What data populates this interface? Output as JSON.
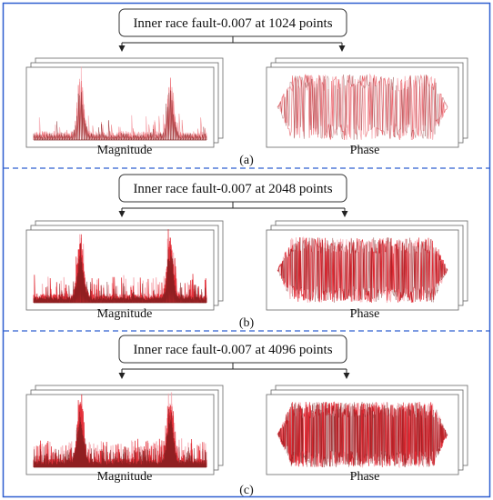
{
  "panels": [
    {
      "id": "a",
      "title": "Inner race fault-0.007 at 1024 points",
      "magnitude_label": "Magnitude",
      "phase_label": "Phase",
      "caption": "(a)",
      "density": "low"
    },
    {
      "id": "b",
      "title": "Inner race fault-0.007 at 2048 points",
      "magnitude_label": "Magnitude",
      "phase_label": "Phase",
      "caption": "(b)",
      "density": "medium"
    },
    {
      "id": "c",
      "title": "Inner race fault-0.007 at 4096 points",
      "magnitude_label": "Magnitude",
      "phase_label": "Phase",
      "caption": "(c)",
      "density": "high"
    }
  ],
  "colors": {
    "border": "#2f5fd0",
    "divider": "#2f5fd0",
    "signal_dark": "#7a1c1c",
    "signal_red": "#e0202a",
    "signal_pink": "#f5a0a8"
  }
}
